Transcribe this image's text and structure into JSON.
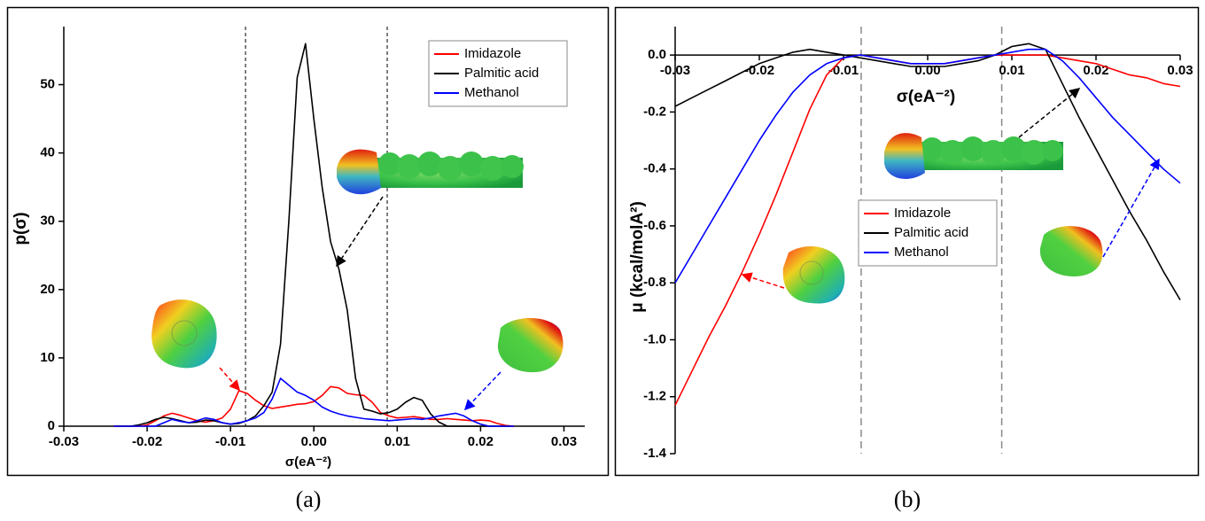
{
  "chart_data": [
    {
      "type": "line",
      "caption": "(a)",
      "xlabel": "σ(eA⁻²)",
      "ylabel": "p(σ)",
      "xlim": [
        -0.03,
        0.0325
      ],
      "ylim": [
        0,
        58.5
      ],
      "xticks": [
        -0.03,
        -0.02,
        -0.01,
        {
          "value": 0,
          "label": "0.00"
        },
        0.01,
        0.02,
        0.03
      ],
      "yticks": [
        0,
        10,
        20,
        30,
        40,
        50
      ],
      "vlines": [
        -0.0082,
        0.0088
      ],
      "legend": "upper right",
      "x": [
        -0.024,
        -0.023,
        -0.022,
        -0.021,
        -0.02,
        -0.019,
        -0.018,
        -0.017,
        -0.016,
        -0.015,
        -0.014,
        -0.013,
        -0.012,
        -0.011,
        -0.01,
        -0.009,
        -0.008,
        -0.007,
        -0.006,
        -0.005,
        -0.004,
        -0.003,
        -0.002,
        -0.001,
        0,
        0.001,
        0.002,
        0.003,
        0.004,
        0.005,
        0.006,
        0.007,
        0.008,
        0.009,
        0.01,
        0.011,
        0.012,
        0.013,
        0.014,
        0.015,
        0.016,
        0.017,
        0.018,
        0.019,
        0.02,
        0.021,
        0.022,
        0.023,
        0.024
      ],
      "series": [
        {
          "name": "Imidazole",
          "color": "#ff0000",
          "values": [
            0,
            0,
            0,
            0,
            0.2,
            0.8,
            1.5,
            1.9,
            1.6,
            1.2,
            0.8,
            0.6,
            0.8,
            1.2,
            2.5,
            5.2,
            4.8,
            3.8,
            3.0,
            2.6,
            2.8,
            3.0,
            3.2,
            3.3,
            3.6,
            4.5,
            5.8,
            5.6,
            4.8,
            4.6,
            4.5,
            3.5,
            2.0,
            1.5,
            1.2,
            1.3,
            1.4,
            1.2,
            1.0,
            1.0,
            1.1,
            1.0,
            0.9,
            0.8,
            0.9,
            0.8,
            0.4,
            0.1,
            0
          ]
        },
        {
          "name": "Palmitic acid",
          "color": "#000000",
          "values": [
            0,
            0,
            0,
            0.2,
            0.5,
            1.0,
            1.3,
            1.1,
            0.8,
            0.5,
            0.6,
            0.9,
            0.8,
            0.5,
            0.3,
            0.4,
            0.8,
            1.5,
            3,
            5,
            12,
            30,
            51,
            56,
            45,
            35,
            27,
            23,
            17,
            7,
            2.5,
            2.2,
            1.8,
            2.0,
            2.5,
            3.5,
            4.2,
            3.8,
            1.8,
            0.6,
            0,
            0,
            0,
            0,
            0,
            0,
            0,
            0,
            0
          ]
        },
        {
          "name": "Methanol",
          "color": "#0000ff",
          "values": [
            0,
            0,
            0,
            0,
            0,
            0,
            0.5,
            1.0,
            0.7,
            0.5,
            0.8,
            1.2,
            1.0,
            0.5,
            0.3,
            0.5,
            0.8,
            1.2,
            2.0,
            4.0,
            7.0,
            6.0,
            5.0,
            4.5,
            3.8,
            2.8,
            2.2,
            1.8,
            1.5,
            1.3,
            1.1,
            1.0,
            0.9,
            0.8,
            0.9,
            1.0,
            1.1,
            1.0,
            1.2,
            1.5,
            1.7,
            1.9,
            1.5,
            0.8,
            0.3,
            0,
            0,
            0,
            0
          ]
        }
      ]
    },
    {
      "type": "line",
      "caption": "(b)",
      "xlabel": "σ(eA⁻²)",
      "ylabel": "μ (kcal/molA²)",
      "xlim": [
        -0.03,
        0.03
      ],
      "ylim": [
        -1.4,
        0.1
      ],
      "xticks": [
        -0.03,
        -0.02,
        -0.01,
        {
          "value": 0,
          "label": "0.00"
        },
        0.01,
        0.02,
        0.03
      ],
      "yticks": [
        {
          "value": 0,
          "label": "0.0"
        },
        -0.2,
        -0.4,
        -0.6,
        -0.8,
        {
          "value": -1,
          "label": "-1.0"
        },
        -1.2,
        -1.4
      ],
      "vlines": [
        -0.0079,
        0.0088
      ],
      "legend": "center",
      "x": [
        -0.03,
        -0.028,
        -0.026,
        -0.024,
        -0.022,
        -0.02,
        -0.018,
        -0.016,
        -0.014,
        -0.012,
        -0.01,
        -0.008,
        -0.006,
        -0.004,
        -0.002,
        0,
        0.002,
        0.004,
        0.006,
        0.008,
        0.01,
        0.012,
        0.014,
        0.016,
        0.018,
        0.02,
        0.022,
        0.024,
        0.026,
        0.028,
        0.03
      ],
      "series": [
        {
          "name": "Imidazole",
          "color": "#ff0000",
          "values": [
            -1.23,
            -1.11,
            -0.99,
            -0.88,
            -0.76,
            -0.63,
            -0.49,
            -0.34,
            -0.19,
            -0.07,
            -0.01,
            0,
            -0.01,
            -0.02,
            -0.03,
            -0.03,
            -0.03,
            -0.02,
            -0.01,
            0,
            0,
            0,
            0,
            -0.01,
            -0.02,
            -0.03,
            -0.05,
            -0.07,
            -0.08,
            -0.1,
            -0.11
          ]
        },
        {
          "name": "Palmitic acid",
          "color": "#000000",
          "values": [
            -0.18,
            -0.15,
            -0.12,
            -0.09,
            -0.06,
            -0.03,
            -0.01,
            0.01,
            0.02,
            0.01,
            0,
            -0.01,
            -0.02,
            -0.03,
            -0.04,
            -0.04,
            -0.04,
            -0.03,
            -0.02,
            0,
            0.03,
            0.04,
            0.02,
            -0.1,
            -0.22,
            -0.33,
            -0.44,
            -0.55,
            -0.65,
            -0.76,
            -0.86
          ]
        },
        {
          "name": "Methanol",
          "color": "#0000ff",
          "values": [
            -0.8,
            -0.7,
            -0.6,
            -0.5,
            -0.4,
            -0.3,
            -0.21,
            -0.13,
            -0.07,
            -0.03,
            -0.01,
            0,
            -0.01,
            -0.02,
            -0.03,
            -0.03,
            -0.03,
            -0.02,
            -0.01,
            0,
            0.01,
            0.02,
            0.02,
            -0.02,
            -0.08,
            -0.15,
            -0.22,
            -0.28,
            -0.34,
            -0.4,
            -0.45
          ]
        }
      ]
    }
  ]
}
